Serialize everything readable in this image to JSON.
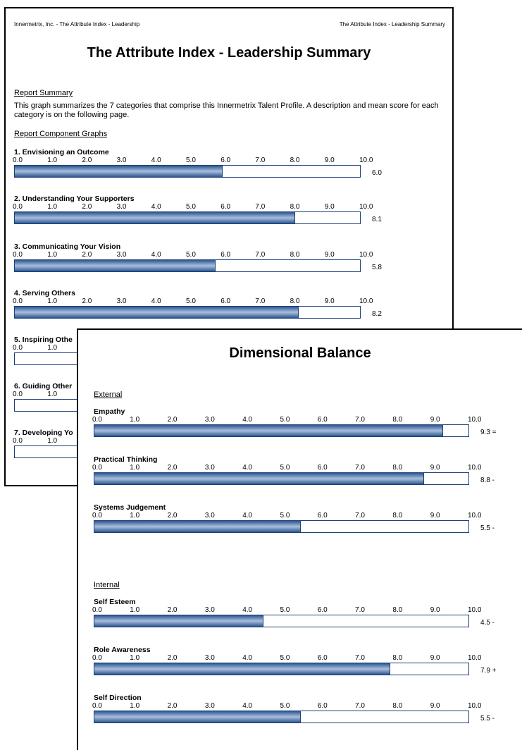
{
  "page1": {
    "header_left": "Innermetrix, Inc. - The Attribute Index  - Leadership",
    "header_right": "The Attribute Index  - Leadership Summary",
    "title": "The Attribute Index  - Leadership Summary",
    "report_summary_heading": "Report Summary",
    "report_summary_text": "This graph summarizes the 7 categories that comprise this Innermetrix Talent Profile. A description and mean score for each category is on the following page.",
    "component_graphs_heading": "Report Component Graphs",
    "scale_ticks": [
      "0.0",
      "1.0",
      "2.0",
      "3.0",
      "4.0",
      "5.0",
      "6.0",
      "7.0",
      "8.0",
      "9.0",
      "10.0"
    ],
    "graphs": [
      {
        "label": "1. Envisioning an Outcome",
        "value": 6.0,
        "score_text": "6.0"
      },
      {
        "label": "2. Understanding Your Supporters",
        "value": 8.1,
        "score_text": "8.1"
      },
      {
        "label": "3. Communicating Your Vision",
        "value": 5.8,
        "score_text": "5.8"
      },
      {
        "label": "4. Serving Others",
        "value": 8.2,
        "score_text": "8.2"
      },
      {
        "label": "5. Inspiring Othe",
        "value": null,
        "score_text": ""
      },
      {
        "label": "6. Guiding Other",
        "value": null,
        "score_text": ""
      },
      {
        "label": "7. Developing Yo",
        "value": null,
        "score_text": ""
      }
    ]
  },
  "page2": {
    "title": "Dimensional Balance",
    "scale_ticks": [
      "0.0",
      "1.0",
      "2.0",
      "3.0",
      "4.0",
      "5.0",
      "6.0",
      "7.0",
      "8.0",
      "9.0",
      "10.0"
    ],
    "external_heading": "External",
    "internal_heading": "Internal",
    "external": [
      {
        "label": "Empathy",
        "value": 9.3,
        "score_text": "9.3 ="
      },
      {
        "label": "Practical Thinking",
        "value": 8.8,
        "score_text": "8.8 -"
      },
      {
        "label": "Systems Judgement",
        "value": 5.5,
        "score_text": "5.5 -"
      }
    ],
    "internal": [
      {
        "label": "Self Esteem",
        "value": 4.5,
        "score_text": "4.5 -"
      },
      {
        "label": "Role Awareness",
        "value": 7.9,
        "score_text": "7.9 +"
      },
      {
        "label": "Self Direction",
        "value": 5.5,
        "score_text": "5.5 -"
      }
    ]
  },
  "colors": {
    "bar_dark": "#2b5690",
    "bar_light": "#a9bfdc",
    "border": "#1b3f78"
  }
}
